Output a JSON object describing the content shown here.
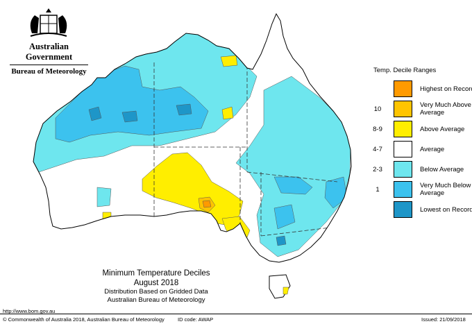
{
  "header": {
    "government": "Australian Government",
    "bureau": "Bureau of Meteorology",
    "crest": "commonwealth-coat-of-arms-icon"
  },
  "legend": {
    "title": "Temp. Decile Ranges",
    "items": [
      {
        "code": "",
        "label": "Highest on Record",
        "color": "#ff9a00"
      },
      {
        "code": "10",
        "label": "Very Much Above Average",
        "color": "#ffc400"
      },
      {
        "code": "8-9",
        "label": "Above Average",
        "color": "#ffee00"
      },
      {
        "code": "4-7",
        "label": "Average",
        "color": "#ffffff"
      },
      {
        "code": "2-3",
        "label": "Below Average",
        "color": "#6ee6ee"
      },
      {
        "code": "1",
        "label": "Very Much Below Average",
        "color": "#3cc2ee"
      },
      {
        "code": "",
        "label": "Lowest on Record",
        "color": "#1e96c8"
      }
    ]
  },
  "caption": {
    "title": "Minimum Temperature Deciles",
    "period": "August 2018",
    "line1": "Distribution Based on Gridded Data",
    "line2": "Australian Bureau of Meteorology"
  },
  "footer": {
    "url": "http://www.bom.gov.au",
    "copyright": "© Commonwealth of Australia 2018, Australian Bureau of Meteorology",
    "id_code": "ID code: AWAP",
    "issued": "Issued: 21/09/2018"
  }
}
